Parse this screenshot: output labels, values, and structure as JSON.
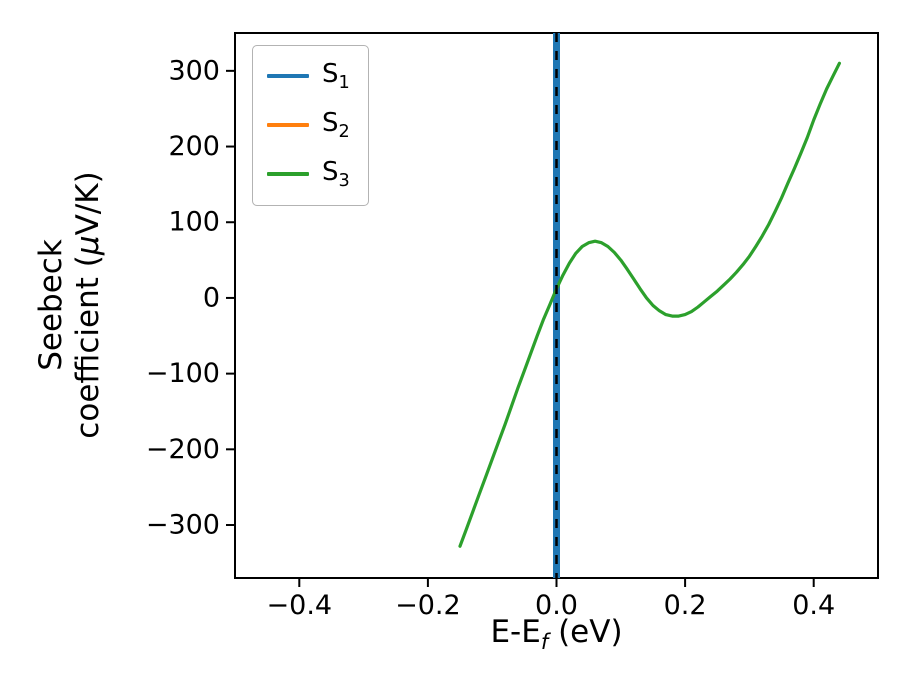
{
  "figure": {
    "background": "#ffffff",
    "frame_color": "#000000"
  },
  "chart_data": {
    "type": "line",
    "title": "",
    "xlabel": "E-E_f (eV)",
    "ylabel": "Seebeck coefficient (μV/K)",
    "xlabel_parts": {
      "pre": "E-E",
      "sub": "f",
      "post": " (eV)"
    },
    "ylabel_lines": {
      "line1": "Seebeck",
      "line2_pre": "coefficient (",
      "line2_mu": "μ",
      "line2_post": "V/K)"
    },
    "xlim": [
      -0.5,
      0.5
    ],
    "ylim": [
      -370,
      350
    ],
    "xticks": [
      -0.4,
      -0.2,
      0.0,
      0.2,
      0.4
    ],
    "xtick_labels": [
      "−0.4",
      "−0.2",
      "0.0",
      "0.2",
      "0.4"
    ],
    "yticks": [
      -300,
      -200,
      -100,
      0,
      100,
      200,
      300
    ],
    "ytick_labels": [
      "−300",
      "−200",
      "−100",
      "0",
      "100",
      "200",
      "300"
    ],
    "grid": false,
    "legend": {
      "position": "upper left",
      "entries": [
        {
          "label": "S",
          "sub": "1",
          "color": "#1f77b4"
        },
        {
          "label": "S",
          "sub": "2",
          "color": "#ff7f0e"
        },
        {
          "label": "S",
          "sub": "3",
          "color": "#2ca02c"
        }
      ]
    },
    "series": [
      {
        "name": "S1",
        "color": "#1f77b4",
        "style": "vline",
        "x": 0.0,
        "linewidth": 7,
        "zorder": 2
      },
      {
        "name": "S2",
        "color": "#ff7f0e",
        "style": "vline",
        "x": 0.0,
        "linewidth": 7,
        "zorder": 1
      },
      {
        "name": "S3",
        "color": "#2ca02c",
        "style": "curve",
        "linewidth": 3.2,
        "zorder": 3,
        "points": [
          [
            -0.15,
            -328
          ],
          [
            -0.14,
            -305
          ],
          [
            -0.13,
            -282
          ],
          [
            -0.12,
            -259
          ],
          [
            -0.11,
            -236
          ],
          [
            -0.1,
            -213
          ],
          [
            -0.09,
            -190
          ],
          [
            -0.08,
            -167
          ],
          [
            -0.07,
            -143
          ],
          [
            -0.06,
            -119
          ],
          [
            -0.05,
            -96
          ],
          [
            -0.04,
            -73
          ],
          [
            -0.03,
            -50
          ],
          [
            -0.02,
            -28
          ],
          [
            -0.01,
            -8
          ],
          [
            0.0,
            12
          ],
          [
            0.01,
            30
          ],
          [
            0.02,
            46
          ],
          [
            0.03,
            59
          ],
          [
            0.04,
            68
          ],
          [
            0.05,
            73
          ],
          [
            0.06,
            75
          ],
          [
            0.07,
            73
          ],
          [
            0.08,
            68
          ],
          [
            0.09,
            60
          ],
          [
            0.1,
            50
          ],
          [
            0.11,
            38
          ],
          [
            0.12,
            25
          ],
          [
            0.13,
            12
          ],
          [
            0.14,
            0
          ],
          [
            0.15,
            -10
          ],
          [
            0.16,
            -17
          ],
          [
            0.17,
            -22
          ],
          [
            0.18,
            -24
          ],
          [
            0.19,
            -24
          ],
          [
            0.2,
            -22
          ],
          [
            0.21,
            -18
          ],
          [
            0.22,
            -12
          ],
          [
            0.23,
            -5
          ],
          [
            0.24,
            2
          ],
          [
            0.25,
            9
          ],
          [
            0.26,
            17
          ],
          [
            0.27,
            25
          ],
          [
            0.28,
            34
          ],
          [
            0.29,
            44
          ],
          [
            0.3,
            55
          ],
          [
            0.31,
            68
          ],
          [
            0.32,
            82
          ],
          [
            0.33,
            97
          ],
          [
            0.34,
            114
          ],
          [
            0.35,
            132
          ],
          [
            0.36,
            152
          ],
          [
            0.37,
            171
          ],
          [
            0.38,
            191
          ],
          [
            0.39,
            212
          ],
          [
            0.4,
            235
          ],
          [
            0.41,
            256
          ],
          [
            0.42,
            276
          ],
          [
            0.43,
            293
          ],
          [
            0.44,
            310
          ]
        ]
      }
    ],
    "annotations": [
      {
        "type": "vline",
        "x": 0.0,
        "color": "#000000",
        "linewidth": 2.5,
        "dash": true
      }
    ]
  }
}
